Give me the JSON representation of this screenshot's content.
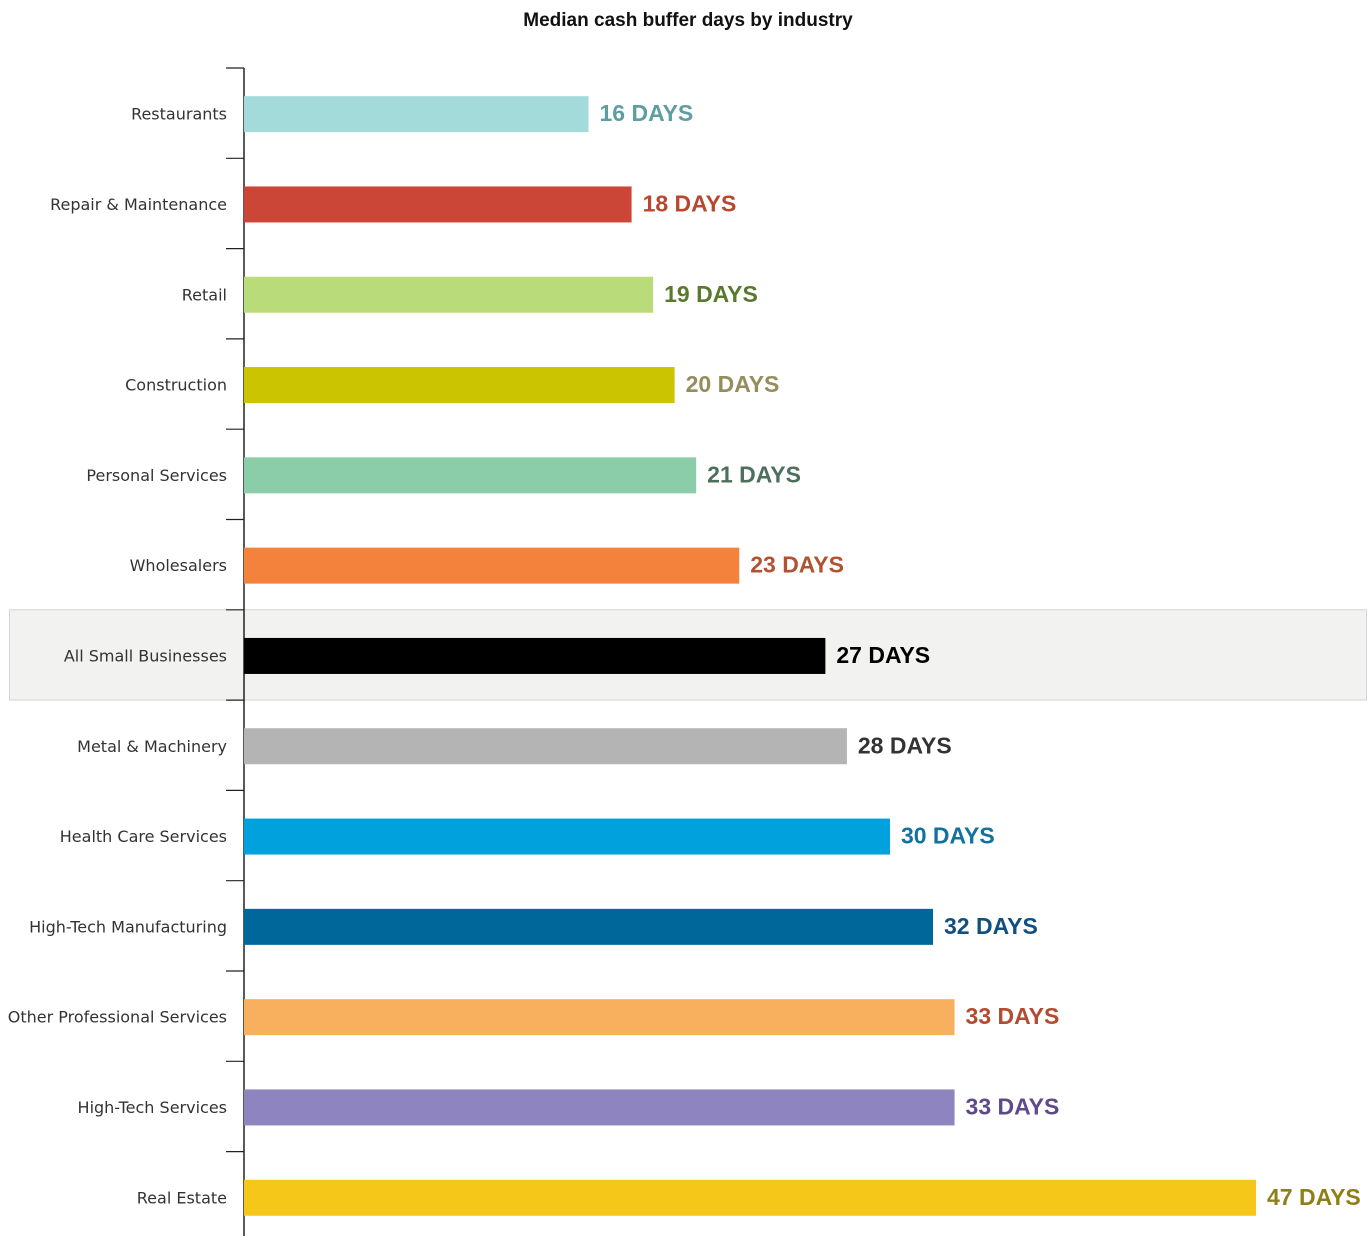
{
  "chart_data": {
    "type": "bar",
    "orientation": "horizontal",
    "title": "Median cash buffer days by industry",
    "xlabel": "",
    "ylabel": "",
    "xlim": [
      0,
      47
    ],
    "grid": false,
    "legend": "none",
    "highlight_category": "All Small Businesses",
    "highlight_color": "#f2f2f0",
    "categories": [
      "Restaurants",
      "Repair & Maintenance",
      "Retail",
      "Construction",
      "Personal Services",
      "Wholesalers",
      "All Small Businesses",
      "Metal & Machinery",
      "Health Care Services",
      "High-Tech Manufacturing",
      "Other Professional Services",
      "High-Tech Services",
      "Real Estate"
    ],
    "values": [
      16,
      18,
      19,
      20,
      21,
      23,
      27,
      28,
      30,
      32,
      33,
      33,
      47
    ],
    "data_labels": [
      "16 DAYS",
      "18 DAYS",
      "19 DAYS",
      "20 DAYS",
      "21 DAYS",
      "23 DAYS",
      "27 DAYS",
      "28 DAYS",
      "30 DAYS",
      "32 DAYS",
      "33 DAYS",
      "33 DAYS",
      "47 DAYS"
    ],
    "bar_colors": [
      "#a3dbdb",
      "#cc4638",
      "#badb7a",
      "#cbc400",
      "#8acda8",
      "#f5823c",
      "#000000",
      "#b3b4b3",
      "#00a1dd",
      "#00679a",
      "#f8b05f",
      "#8d84c0",
      "#f5c719"
    ],
    "label_colors": [
      "#5f9ea0",
      "#b9472f",
      "#587a2f",
      "#968d5c",
      "#4d6f5d",
      "#b15331",
      "#000000",
      "#333333",
      "#12719f",
      "#104f7f",
      "#b34b32",
      "#5e4a89",
      "#8f7f17"
    ]
  }
}
